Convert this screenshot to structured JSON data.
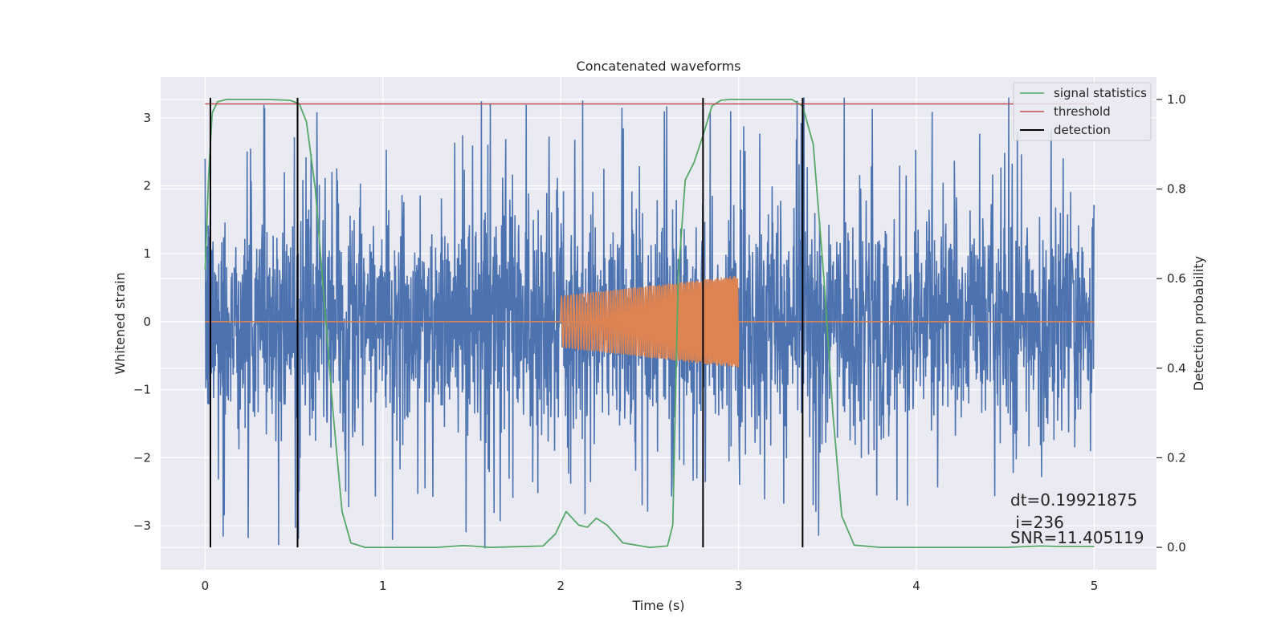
{
  "chart_data": {
    "type": "line",
    "title": "Concatenated waveforms",
    "xlabel": "Time (s)",
    "ylabel": "Whitened strain",
    "y2label": "Detection probability",
    "xlim": [
      -0.25,
      5.35
    ],
    "ylim": [
      -3.65,
      3.6
    ],
    "y2lim": [
      -0.05,
      1.05
    ],
    "xticks": [
      0,
      1,
      2,
      3,
      4,
      5
    ],
    "yticks": [
      -3,
      -2,
      -1,
      0,
      1,
      2,
      3
    ],
    "y2ticks": [
      0.0,
      0.2,
      0.4,
      0.6,
      0.8,
      1.0
    ],
    "xtick_labels": [
      "0",
      "1",
      "2",
      "3",
      "4",
      "5"
    ],
    "ytick_labels": [
      "−3",
      "−2",
      "−1",
      "0",
      "1",
      "2",
      "3"
    ],
    "y2tick_labels": [
      "0.0",
      "0.2",
      "0.4",
      "0.6",
      "0.8",
      "1.0"
    ],
    "grid": true,
    "legend_position": "top-right",
    "series": [
      {
        "name": "",
        "axis": "left",
        "kind": "noise",
        "color": "#4c72b0",
        "t_start": 0.0,
        "t_end": 5.0,
        "amplitude_typical": 1.2,
        "amplitude_peak": 3.3
      },
      {
        "name": "",
        "axis": "left",
        "kind": "chirp",
        "color": "#dd8452",
        "t_start": 2.0,
        "t_end": 3.0,
        "amp_start": 0.38,
        "amp_end": 0.68,
        "baseline": 0.0
      },
      {
        "name": "signal statistics",
        "axis": "right",
        "color": "#55a868",
        "x": [
          0.0,
          0.02,
          0.04,
          0.07,
          0.12,
          0.2,
          0.35,
          0.48,
          0.53,
          0.57,
          0.62,
          0.67,
          0.72,
          0.77,
          0.82,
          0.9,
          1.0,
          1.3,
          1.45,
          1.5,
          1.6,
          1.9,
          1.97,
          2.03,
          2.1,
          2.15,
          2.2,
          2.26,
          2.35,
          2.5,
          2.6,
          2.63,
          2.66,
          2.7,
          2.75,
          2.8,
          2.85,
          2.9,
          2.95,
          3.1,
          3.3,
          3.36,
          3.42,
          3.48,
          3.53,
          3.58,
          3.65,
          3.8,
          4.5,
          4.7,
          4.8,
          5.0
        ],
        "y": [
          0.62,
          0.83,
          0.97,
          0.995,
          1.0,
          1.0,
          1.0,
          0.998,
          0.99,
          0.95,
          0.8,
          0.55,
          0.3,
          0.08,
          0.01,
          0.0,
          0.0,
          0.0,
          0.004,
          0.003,
          0.0,
          0.003,
          0.03,
          0.08,
          0.05,
          0.045,
          0.065,
          0.05,
          0.01,
          0.0,
          0.003,
          0.05,
          0.6,
          0.82,
          0.86,
          0.92,
          0.985,
          0.998,
          1.0,
          1.0,
          1.0,
          0.985,
          0.9,
          0.6,
          0.3,
          0.07,
          0.005,
          0.0,
          0.0,
          0.003,
          0.002,
          0.002
        ]
      },
      {
        "name": "threshold",
        "axis": "right",
        "color": "#c44e52",
        "x": [
          0.0,
          5.0
        ],
        "y": [
          0.99,
          0.99
        ]
      },
      {
        "name": "detection",
        "axis": "right",
        "color": "#000000",
        "kind": "vlines",
        "x": [
          0.03,
          0.52,
          2.8,
          3.36
        ],
        "y_range": [
          0.0,
          1.0
        ]
      }
    ],
    "annotation": {
      "line1": "dt=0.19921875",
      "line2": " i=236",
      "line3": "SNR=11.405119"
    }
  }
}
